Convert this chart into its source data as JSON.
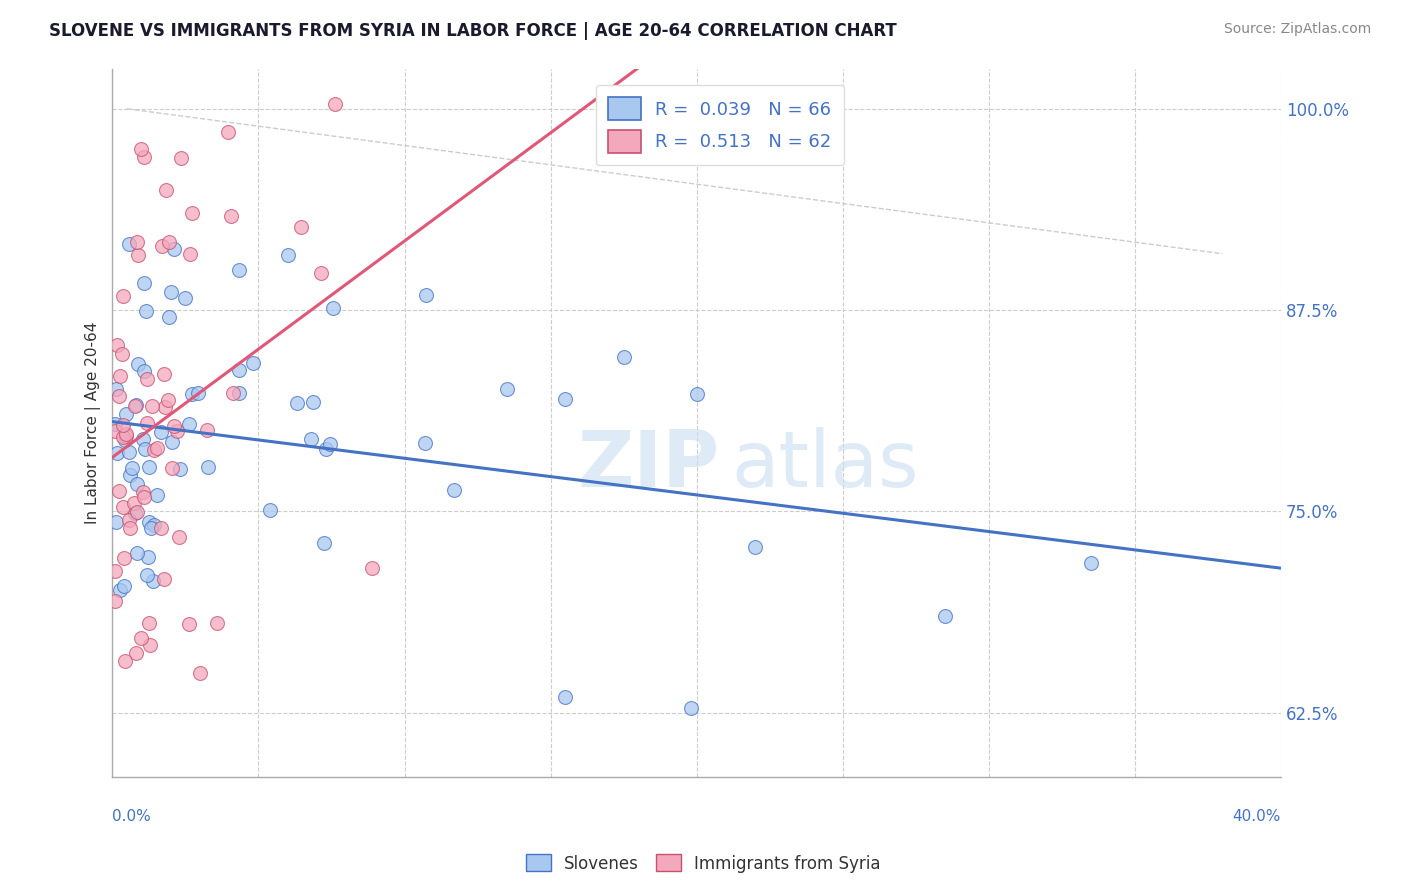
{
  "title": "SLOVENE VS IMMIGRANTS FROM SYRIA IN LABOR FORCE | AGE 20-64 CORRELATION CHART",
  "source": "Source: ZipAtlas.com",
  "ylabel": "In Labor Force | Age 20-64",
  "legend_bottom": [
    "Slovenes",
    "Immigrants from Syria"
  ],
  "r_slovene": 0.039,
  "n_slovene": 66,
  "r_syria": 0.513,
  "n_syria": 62,
  "xmin": 0.0,
  "xmax": 0.4,
  "ymin": 0.585,
  "ymax": 1.025,
  "yticks": [
    0.625,
    0.75,
    0.875,
    1.0
  ],
  "ytick_labels": [
    "62.5%",
    "75.0%",
    "87.5%",
    "100.0%"
  ],
  "color_slovene": "#A8C8F0",
  "color_syria": "#F4A8BC",
  "line_color_slovene": "#4472C4",
  "line_color_syria": "#E05878"
}
